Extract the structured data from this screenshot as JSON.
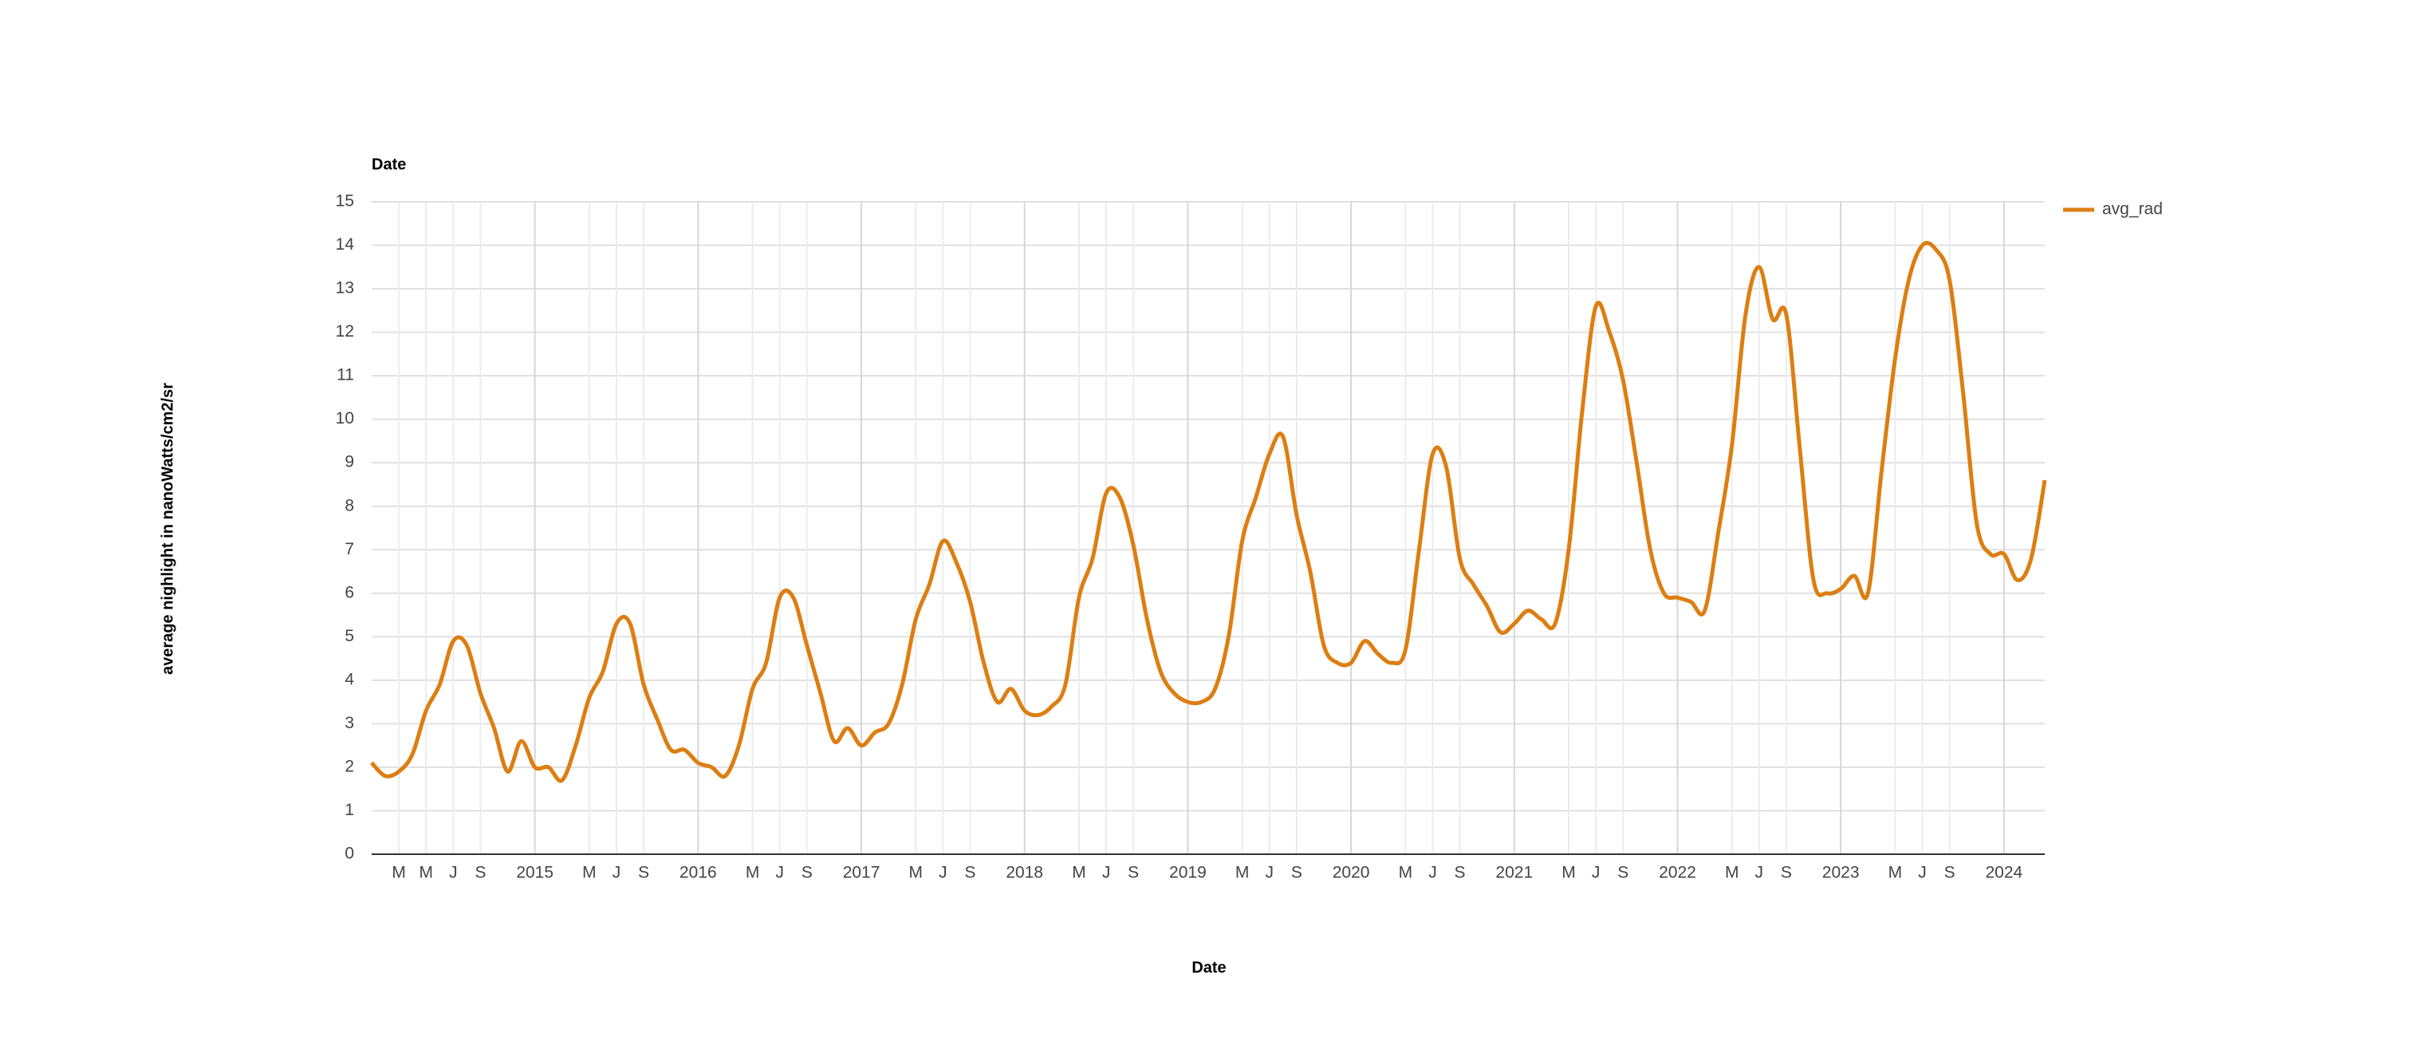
{
  "chart_data": {
    "type": "line",
    "title": "Date",
    "x_label": "Date",
    "y_label": "average nighlight in nanoWatts/cm2/sr",
    "legend": "right",
    "grid": true,
    "x": [
      "2014-01",
      "2014-02",
      "2014-03",
      "2014-04",
      "2014-05",
      "2014-06",
      "2014-07",
      "2014-08",
      "2014-09",
      "2014-10",
      "2014-11",
      "2014-12",
      "2015-01",
      "2015-02",
      "2015-03",
      "2015-04",
      "2015-05",
      "2015-06",
      "2015-07",
      "2015-08",
      "2015-09",
      "2015-10",
      "2015-11",
      "2015-12",
      "2016-01",
      "2016-02",
      "2016-03",
      "2016-04",
      "2016-05",
      "2016-06",
      "2016-07",
      "2016-08",
      "2016-09",
      "2016-10",
      "2016-11",
      "2016-12",
      "2017-01",
      "2017-02",
      "2017-03",
      "2017-04",
      "2017-05",
      "2017-06",
      "2017-07",
      "2017-08",
      "2017-09",
      "2017-10",
      "2017-11",
      "2017-12",
      "2018-01",
      "2018-02",
      "2018-03",
      "2018-04",
      "2018-05",
      "2018-06",
      "2018-07",
      "2018-08",
      "2018-09",
      "2018-10",
      "2018-11",
      "2018-12",
      "2019-01",
      "2019-02",
      "2019-03",
      "2019-04",
      "2019-05",
      "2019-06",
      "2019-07",
      "2019-08",
      "2019-09",
      "2019-10",
      "2019-11",
      "2019-12",
      "2020-01",
      "2020-02",
      "2020-03",
      "2020-04",
      "2020-05",
      "2020-06",
      "2020-07",
      "2020-08",
      "2020-09",
      "2020-10",
      "2020-11",
      "2020-12",
      "2021-01",
      "2021-02",
      "2021-03",
      "2021-04",
      "2021-05",
      "2021-06",
      "2021-07",
      "2021-08",
      "2021-09",
      "2021-10",
      "2021-11",
      "2021-12",
      "2022-01",
      "2022-02",
      "2022-03",
      "2022-04",
      "2022-05",
      "2022-06",
      "2022-07",
      "2022-08",
      "2022-09",
      "2022-10",
      "2022-11",
      "2022-12",
      "2023-01",
      "2023-02",
      "2023-03",
      "2023-04",
      "2023-05",
      "2023-06",
      "2023-07",
      "2023-08",
      "2023-09",
      "2023-10",
      "2023-11",
      "2023-12",
      "2024-01",
      "2024-02",
      "2024-03",
      "2024-04"
    ],
    "series": [
      {
        "name": "avg_rad",
        "color": "#dd7e12",
        "values": [
          2.1,
          1.8,
          1.9,
          2.3,
          3.3,
          3.9,
          4.9,
          4.8,
          3.7,
          2.9,
          1.9,
          2.6,
          2.0,
          2.0,
          1.7,
          2.5,
          3.6,
          4.2,
          5.3,
          5.3,
          3.9,
          3.1,
          2.4,
          2.4,
          2.1,
          2.0,
          1.8,
          2.5,
          3.8,
          4.4,
          5.9,
          5.9,
          4.8,
          3.7,
          2.6,
          2.9,
          2.5,
          2.8,
          3.0,
          3.9,
          5.4,
          6.2,
          7.2,
          6.7,
          5.8,
          4.4,
          3.5,
          3.8,
          3.3,
          3.2,
          3.4,
          3.9,
          5.9,
          6.8,
          8.3,
          8.2,
          7.1,
          5.4,
          4.2,
          3.7,
          3.5,
          3.5,
          3.8,
          5.0,
          7.2,
          8.2,
          9.2,
          9.6,
          7.8,
          6.5,
          4.8,
          4.4,
          4.4,
          4.9,
          4.6,
          4.4,
          4.7,
          7.0,
          9.2,
          8.9,
          6.8,
          6.2,
          5.7,
          5.1,
          5.3,
          5.6,
          5.4,
          5.3,
          7.0,
          10.2,
          12.6,
          12.0,
          10.9,
          9.0,
          7.0,
          6.0,
          5.9,
          5.8,
          5.6,
          7.4,
          9.4,
          12.4,
          13.5,
          12.3,
          12.4,
          9.3,
          6.3,
          6.0,
          6.1,
          6.4,
          6.0,
          8.8,
          11.4,
          13.2,
          14.0,
          13.9,
          13.2,
          10.6,
          7.6,
          6.9,
          6.9,
          6.3,
          6.8,
          8.6
        ]
      }
    ],
    "xlim": [
      "2014-01",
      "2024-04"
    ],
    "xticks": [
      {
        "value": "2014-03",
        "label": "M"
      },
      {
        "value": "2014-05",
        "label": "M"
      },
      {
        "value": "2014-07",
        "label": "J"
      },
      {
        "value": "2014-09",
        "label": "S"
      },
      {
        "value": "2015-01",
        "label": "2015"
      },
      {
        "value": "2015-05",
        "label": "M"
      },
      {
        "value": "2015-07",
        "label": "J"
      },
      {
        "value": "2015-09",
        "label": "S"
      },
      {
        "value": "2016-01",
        "label": "2016"
      },
      {
        "value": "2016-05",
        "label": "M"
      },
      {
        "value": "2016-07",
        "label": "J"
      },
      {
        "value": "2016-09",
        "label": "S"
      },
      {
        "value": "2017-01",
        "label": "2017"
      },
      {
        "value": "2017-05",
        "label": "M"
      },
      {
        "value": "2017-07",
        "label": "J"
      },
      {
        "value": "2017-09",
        "label": "S"
      },
      {
        "value": "2018-01",
        "label": "2018"
      },
      {
        "value": "2018-05",
        "label": "M"
      },
      {
        "value": "2018-07",
        "label": "J"
      },
      {
        "value": "2018-09",
        "label": "S"
      },
      {
        "value": "2019-01",
        "label": "2019"
      },
      {
        "value": "2019-05",
        "label": "M"
      },
      {
        "value": "2019-07",
        "label": "J"
      },
      {
        "value": "2019-09",
        "label": "S"
      },
      {
        "value": "2020-01",
        "label": "2020"
      },
      {
        "value": "2020-05",
        "label": "M"
      },
      {
        "value": "2020-07",
        "label": "J"
      },
      {
        "value": "2020-09",
        "label": "S"
      },
      {
        "value": "2021-01",
        "label": "2021"
      },
      {
        "value": "2021-05",
        "label": "M"
      },
      {
        "value": "2021-07",
        "label": "J"
      },
      {
        "value": "2021-09",
        "label": "S"
      },
      {
        "value": "2022-01",
        "label": "2022"
      },
      {
        "value": "2022-05",
        "label": "M"
      },
      {
        "value": "2022-07",
        "label": "J"
      },
      {
        "value": "2022-09",
        "label": "S"
      },
      {
        "value": "2023-01",
        "label": "2023"
      },
      {
        "value": "2023-05",
        "label": "M"
      },
      {
        "value": "2023-07",
        "label": "J"
      },
      {
        "value": "2023-09",
        "label": "S"
      },
      {
        "value": "2024-01",
        "label": "2024"
      }
    ],
    "ylim": [
      0,
      15
    ],
    "yticks": [
      0,
      1,
      2,
      3,
      4,
      5,
      6,
      7,
      8,
      9,
      10,
      11,
      12,
      13,
      14,
      15
    ]
  }
}
